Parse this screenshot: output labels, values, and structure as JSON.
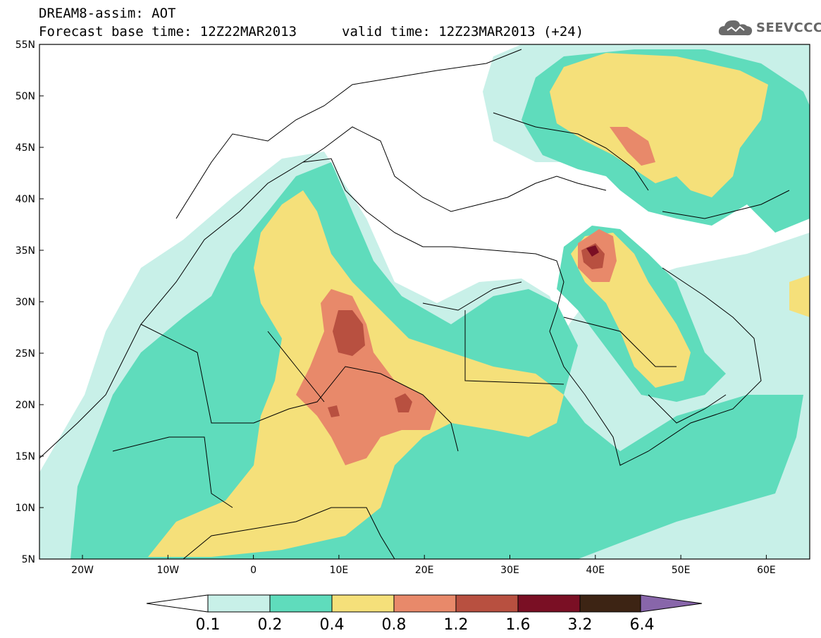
{
  "header": {
    "title": "DREAM8-assim: AOT",
    "base_time": "Forecast base time: 12Z22MAR2013",
    "valid_time": "valid time: 12Z23MAR2013 (+24)",
    "logo_text": "SEEVCCC"
  },
  "map": {
    "lon_labels": [
      "20W",
      "10W",
      "0",
      "10E",
      "20E",
      "30E",
      "40E",
      "50E",
      "60E"
    ],
    "lat_labels": [
      "55N",
      "50N",
      "45N",
      "40N",
      "35N",
      "30N",
      "25N",
      "20N",
      "15N",
      "10N",
      "5N"
    ],
    "colors": {
      "bin1": "#c8f0e8",
      "bin2": "#5fdcbc",
      "bin3": "#f5e07a",
      "bin4": "#e8896a",
      "bin5": "#b85040",
      "bin6": "#7a0f24",
      "bin7": "#3d2414",
      "bin8": "#8866aa"
    }
  },
  "colorbar": {
    "labels": [
      "0.1",
      "0.2",
      "0.4",
      "0.8",
      "1.2",
      "1.6",
      "3.2",
      "6.4"
    ]
  }
}
